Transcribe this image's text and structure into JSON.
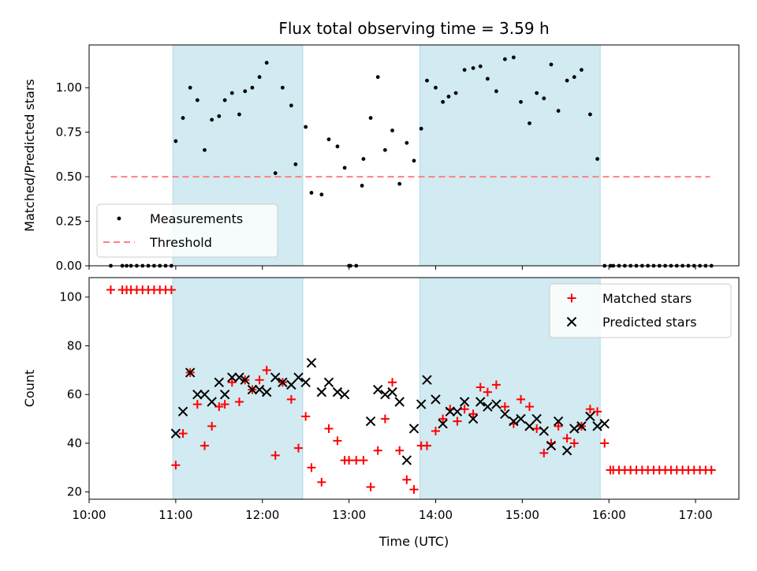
{
  "chart_data": [
    {
      "type": "scatter",
      "title": "Flux total observing time = 3.59 h",
      "xlabel": "",
      "ylabel": "Matched/Predicted stars",
      "xlim": [
        "10:00",
        "17:30"
      ],
      "ylim": [
        0,
        1.24
      ],
      "grid": false,
      "legend_placement": "lower-left",
      "shaded_intervals": [
        [
          "10:58",
          "12:28"
        ],
        [
          "13:49",
          "15:54"
        ]
      ],
      "shade_color": "#add8e6",
      "yticks": [
        0.0,
        0.25,
        0.5,
        0.75,
        1.0
      ],
      "ytick_labels": [
        "0.00",
        "0.25",
        "0.50",
        "0.75",
        "1.00"
      ],
      "series": [
        {
          "name": "Measurements",
          "style": "points",
          "color": "#000000",
          "x": [
            "10:15",
            "10:23",
            "10:26",
            "10:29",
            "10:33",
            "10:37",
            "10:41",
            "10:45",
            "10:49",
            "10:53",
            "10:57",
            "11:00",
            "11:05",
            "11:10",
            "11:15",
            "11:20",
            "11:25",
            "11:30",
            "11:34",
            "11:39",
            "11:44",
            "11:48",
            "11:53",
            "11:58",
            "12:03",
            "12:09",
            "12:14",
            "12:20",
            "12:23",
            "12:30",
            "12:34",
            "12:41",
            "12:46",
            "12:52",
            "12:57",
            "13:00",
            "13:01",
            "13:05",
            "13:09",
            "13:10",
            "13:15",
            "13:20",
            "13:25",
            "13:30",
            "13:35",
            "13:40",
            "13:45",
            "13:50",
            "13:54",
            "14:00",
            "14:05",
            "14:09",
            "14:14",
            "14:20",
            "14:26",
            "14:31",
            "14:36",
            "14:42",
            "14:48",
            "14:54",
            "14:59",
            "15:05",
            "15:10",
            "15:15",
            "15:20",
            "15:25",
            "15:31",
            "15:36",
            "15:41",
            "15:47",
            "15:52",
            "15:57",
            "16:01",
            "16:03",
            "16:07",
            "16:11",
            "16:15",
            "16:19",
            "16:23",
            "16:27",
            "16:31",
            "16:35",
            "16:39",
            "16:43",
            "16:47",
            "16:51",
            "16:55",
            "16:59",
            "17:03",
            "17:07",
            "17:11"
          ],
          "y": [
            0,
            0,
            0,
            0,
            0,
            0,
            0,
            0,
            0,
            0,
            0,
            0.7,
            0.83,
            1.0,
            0.93,
            0.65,
            0.82,
            0.84,
            0.93,
            0.97,
            0.85,
            0.98,
            1.0,
            1.06,
            1.14,
            0.52,
            1.0,
            0.9,
            0.57,
            0.78,
            0.41,
            0.4,
            0.71,
            0.67,
            0.55,
            0,
            0,
            0,
            0.45,
            0.6,
            0.83,
            1.06,
            0.65,
            0.76,
            0.46,
            0.69,
            0.59,
            0.77,
            1.04,
            1.0,
            0.92,
            0.95,
            0.97,
            1.1,
            1.11,
            1.12,
            1.05,
            0.98,
            1.16,
            1.17,
            0.92,
            0.8,
            0.97,
            0.94,
            1.13,
            0.87,
            1.04,
            1.06,
            1.1,
            0.85,
            0.6,
            0,
            0,
            0,
            0,
            0,
            0,
            0,
            0,
            0,
            0,
            0,
            0,
            0,
            0,
            0,
            0,
            0,
            0,
            0,
            0
          ]
        },
        {
          "name": "Threshold",
          "style": "dashed-line",
          "color": "#ff8080",
          "x": [
            "10:15",
            "17:10"
          ],
          "y": [
            0.5,
            0.5
          ]
        }
      ]
    },
    {
      "type": "scatter",
      "title": "",
      "xlabel": "Time (UTC)",
      "ylabel": "Count",
      "xlim": [
        "10:00",
        "17:30"
      ],
      "ylim": [
        17,
        108
      ],
      "grid": false,
      "legend_placement": "upper-right",
      "shaded_intervals": [
        [
          "10:58",
          "12:28"
        ],
        [
          "13:49",
          "15:54"
        ]
      ],
      "shade_color": "#add8e6",
      "xticks": [
        "10:00",
        "11:00",
        "12:00",
        "13:00",
        "14:00",
        "15:00",
        "16:00",
        "17:00"
      ],
      "yticks": [
        20,
        40,
        60,
        80,
        100
      ],
      "series": [
        {
          "name": "Matched stars",
          "marker": "plus",
          "color": "#ff0000",
          "x": [
            "10:15",
            "10:23",
            "10:26",
            "10:29",
            "10:33",
            "10:37",
            "10:41",
            "10:45",
            "10:49",
            "10:53",
            "10:57",
            "11:00",
            "11:05",
            "11:10",
            "11:15",
            "11:20",
            "11:25",
            "11:30",
            "11:34",
            "11:39",
            "11:44",
            "11:48",
            "11:53",
            "11:58",
            "12:03",
            "12:09",
            "12:14",
            "12:20",
            "12:25",
            "12:30",
            "12:34",
            "12:41",
            "12:46",
            "12:52",
            "12:57",
            "13:00",
            "13:05",
            "13:10",
            "13:15",
            "13:20",
            "13:25",
            "13:30",
            "13:35",
            "13:40",
            "13:45",
            "13:50",
            "13:54",
            "14:00",
            "14:05",
            "14:10",
            "14:15",
            "14:20",
            "14:26",
            "14:31",
            "14:36",
            "14:42",
            "14:48",
            "14:54",
            "14:59",
            "15:05",
            "15:10",
            "15:15",
            "15:20",
            "15:25",
            "15:31",
            "15:36",
            "15:41",
            "15:47",
            "15:52",
            "15:57",
            "16:01",
            "16:03",
            "16:07",
            "16:11",
            "16:15",
            "16:19",
            "16:23",
            "16:27",
            "16:31",
            "16:35",
            "16:39",
            "16:43",
            "16:47",
            "16:51",
            "16:55",
            "16:59",
            "17:03",
            "17:07",
            "17:11"
          ],
          "y": [
            103,
            103,
            103,
            103,
            103,
            103,
            103,
            103,
            103,
            103,
            103,
            31,
            44,
            69,
            56,
            39,
            47,
            55,
            56,
            65,
            57,
            66,
            62,
            66,
            70,
            35,
            65,
            58,
            38,
            51,
            30,
            24,
            46,
            41,
            33,
            33,
            33,
            33,
            22,
            37,
            50,
            65,
            37,
            25,
            21,
            39,
            39,
            45,
            50,
            54,
            49,
            54,
            52,
            63,
            61,
            64,
            55,
            48,
            58,
            55,
            46,
            36,
            40,
            47,
            42,
            40,
            47,
            54,
            53,
            40,
            29,
            29,
            29,
            29,
            29,
            29,
            29,
            29,
            29,
            29,
            29,
            29,
            29,
            29,
            29,
            29,
            29,
            29,
            29
          ]
        },
        {
          "name": "Predicted stars",
          "marker": "x",
          "color": "#000000",
          "x": [
            "11:00",
            "11:05",
            "11:10",
            "11:15",
            "11:20",
            "11:25",
            "11:30",
            "11:34",
            "11:39",
            "11:44",
            "11:48",
            "11:53",
            "11:58",
            "12:03",
            "12:09",
            "12:14",
            "12:20",
            "12:25",
            "12:30",
            "12:34",
            "12:41",
            "12:46",
            "12:52",
            "12:57",
            "13:15",
            "13:20",
            "13:25",
            "13:30",
            "13:35",
            "13:40",
            "13:45",
            "13:50",
            "13:54",
            "14:00",
            "14:05",
            "14:10",
            "14:15",
            "14:20",
            "14:26",
            "14:31",
            "14:36",
            "14:42",
            "14:48",
            "14:54",
            "14:59",
            "15:05",
            "15:10",
            "15:15",
            "15:20",
            "15:25",
            "15:31",
            "15:36",
            "15:41",
            "15:47",
            "15:52",
            "15:57"
          ],
          "y": [
            44,
            53,
            69,
            60,
            60,
            57,
            65,
            60,
            67,
            67,
            66,
            62,
            62,
            61,
            67,
            65,
            64,
            67,
            65,
            73,
            61,
            65,
            61,
            60,
            49,
            62,
            60,
            61,
            57,
            33,
            46,
            56,
            66,
            58,
            48,
            53,
            53,
            57,
            50,
            57,
            55,
            56,
            52,
            49,
            50,
            47,
            50,
            45,
            39,
            49,
            37,
            46,
            47,
            51,
            47,
            48
          ]
        }
      ]
    }
  ]
}
